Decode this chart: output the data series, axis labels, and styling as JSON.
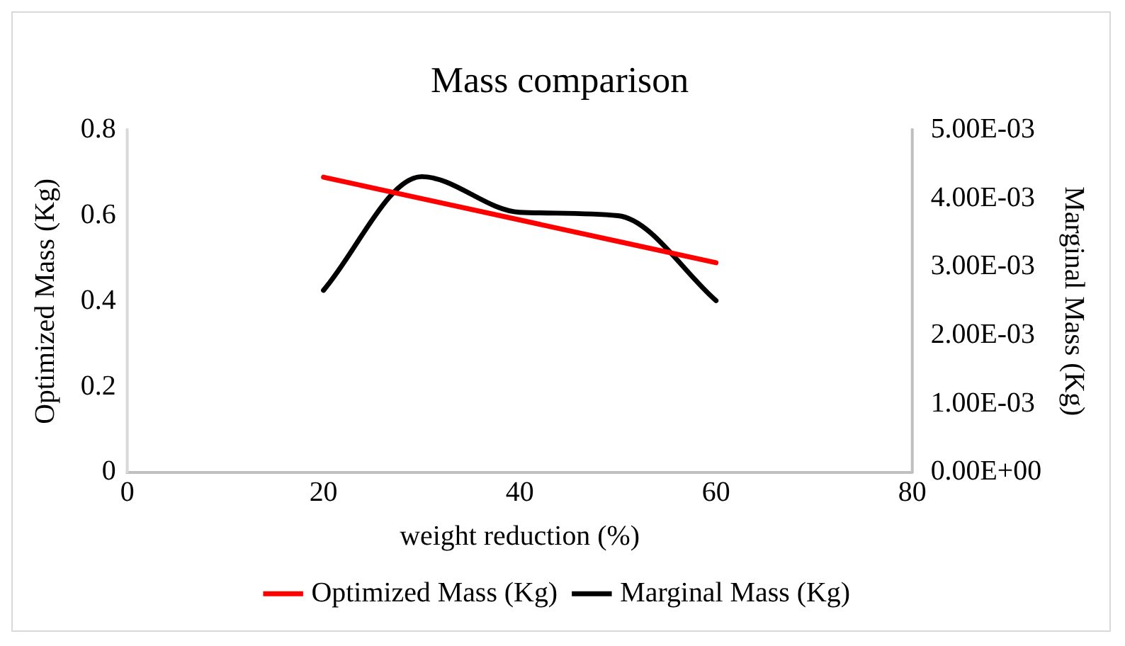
{
  "chart_data": {
    "type": "line",
    "title": "Mass comparison",
    "xlabel": "weight reduction (%)",
    "ylabel": "Optimized Mass (Kg)",
    "y2label": "Marginal Mass (Kg)",
    "x": [
      20,
      30,
      40,
      50,
      60
    ],
    "series": [
      {
        "name": "Optimized Mass (Kg)",
        "color": "#ff0000",
        "values": [
          0.69,
          0.64,
          0.59,
          0.54,
          0.49
        ]
      },
      {
        "name": "Marginal Mass (Kg)",
        "color": "#000000",
        "axis": "y2",
        "values": [
          0.00266,
          0.00432,
          0.0038,
          0.00375,
          0.00251
        ]
      }
    ],
    "xlim": [
      0,
      80
    ],
    "xticks": [
      0,
      20,
      40,
      60,
      80
    ],
    "ylim": [
      0,
      0.8
    ],
    "yticks": [
      0,
      0.2,
      0.4,
      0.6,
      0.8
    ],
    "y2lim": [
      0,
      0.005
    ],
    "y2ticks": [
      {
        "value": 0,
        "label": "0.00E+00"
      },
      {
        "value": 0.001,
        "label": "1.00E-03"
      },
      {
        "value": 0.002,
        "label": "2.00E-03"
      },
      {
        "value": 0.003,
        "label": "3.00E-03"
      },
      {
        "value": 0.004,
        "label": "4.00E-03"
      },
      {
        "value": 0.005,
        "label": "5.00E-03"
      }
    ],
    "grid": false,
    "legend": "bottom",
    "marker": "none",
    "line_style": "solid"
  }
}
